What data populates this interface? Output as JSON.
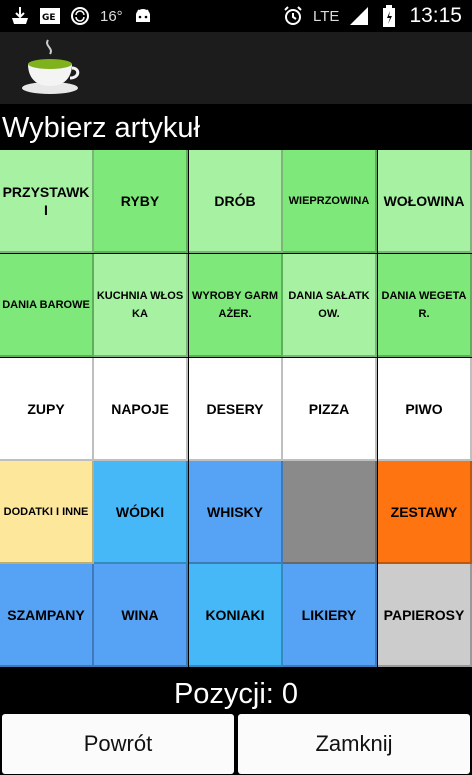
{
  "status_bar": {
    "temperature": "16°",
    "network": "LTE",
    "time": "13:15",
    "left_icons": [
      "download-icon",
      "gmail-icon",
      "sync-icon",
      "android-icon"
    ],
    "right_icons": [
      "alarm-icon",
      "signal-icon",
      "battery-icon"
    ]
  },
  "header": {
    "title": "Wybierz artykuł",
    "app_icon": "tea-cup-icon"
  },
  "grid": {
    "tiles": [
      {
        "label": "PRZYSTAWKI",
        "color": "#a6f2a2"
      },
      {
        "label": "RYBY",
        "color": "#7ee87a"
      },
      {
        "label": "DRÓB",
        "color": "#a6f2a2"
      },
      {
        "label": "WIEPRZOWINA",
        "color": "#7ee87a"
      },
      {
        "label": "WOŁOWINA",
        "color": "#a6f2a2"
      },
      {
        "label": "DANIA BAROWE",
        "color": "#7ee87a"
      },
      {
        "label": "KUCHNIA WŁOSKA",
        "color": "#a6f2a2"
      },
      {
        "label": "WYROBY GARMAŻER.",
        "color": "#7ee87a"
      },
      {
        "label": "DANIA SAŁATKOW.",
        "color": "#a6f2a2"
      },
      {
        "label": "DANIA WEGETAR.",
        "color": "#7ee87a"
      },
      {
        "label": "ZUPY",
        "color": "#ffffff"
      },
      {
        "label": "NAPOJE",
        "color": "#ffffff"
      },
      {
        "label": "DESERY",
        "color": "#ffffff"
      },
      {
        "label": "PIZZA",
        "color": "#ffffff"
      },
      {
        "label": "PIWO",
        "color": "#ffffff"
      },
      {
        "label": "DODATKI I INNE",
        "color": "#fde79a"
      },
      {
        "label": "WÓDKI",
        "color": "#46b8f8"
      },
      {
        "label": "WHISKY",
        "color": "#56a2f4"
      },
      {
        "label": "",
        "color": "#8a8a8a"
      },
      {
        "label": "ZESTAWY",
        "color": "#fd7411"
      },
      {
        "label": "SZAMPANY",
        "color": "#56a2f4"
      },
      {
        "label": "WINA",
        "color": "#56a2f4"
      },
      {
        "label": "KONIAKI",
        "color": "#46b8f8"
      },
      {
        "label": "LIKIERY",
        "color": "#56a2f4"
      },
      {
        "label": "PAPIEROSY",
        "color": "#cccccc"
      }
    ]
  },
  "footer": {
    "count_text": "Pozycji: 0",
    "back_button": "Powrót",
    "close_button": "Zamknij"
  }
}
